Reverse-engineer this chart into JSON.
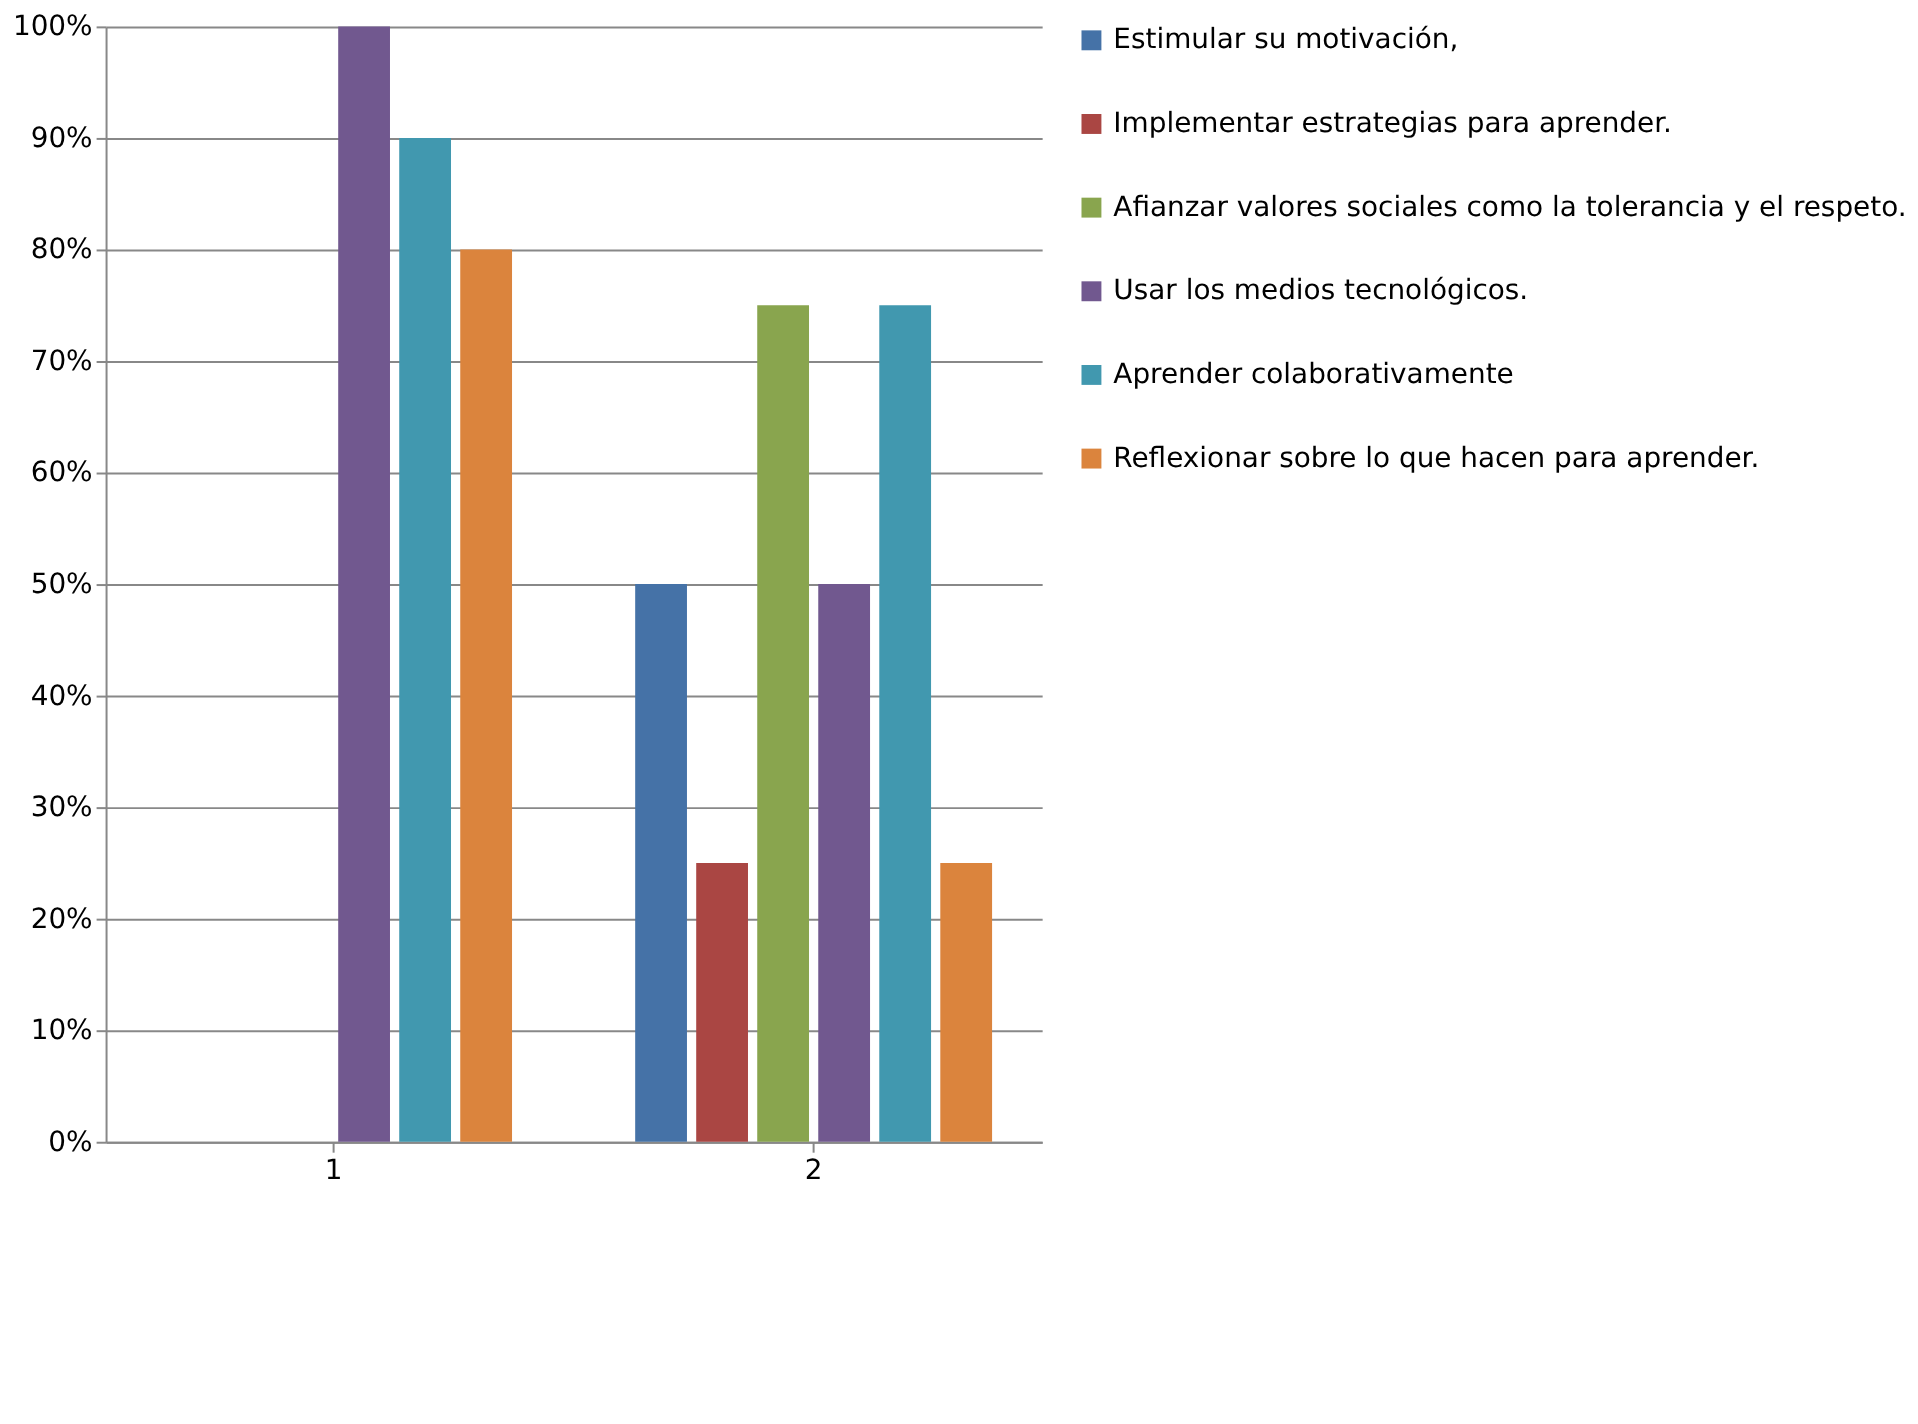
{
  "chart_data": {
    "type": "bar",
    "categories": [
      "1",
      "2"
    ],
    "series": [
      {
        "name": "Estimular su motivación,",
        "color": "#4572a7",
        "values": [
          0,
          50
        ]
      },
      {
        "name": "Implementar estrategias para aprender.",
        "color": "#aa4643",
        "values": [
          0,
          25
        ]
      },
      {
        "name": "Afianzar valores sociales como la tolerancia y el respeto.",
        "color": "#89a54e",
        "values": [
          0,
          75
        ]
      },
      {
        "name": "Usar los medios tecnológicos.",
        "color": "#71588f",
        "values": [
          100,
          50
        ]
      },
      {
        "name": "Aprender colaborativamente",
        "color": "#4198af",
        "values": [
          90,
          75
        ]
      },
      {
        "name": "Reflexionar sobre lo que hacen para aprender.",
        "color": "#db843d",
        "values": [
          80,
          25
        ]
      }
    ],
    "ylim": [
      0,
      100
    ],
    "yticks": [
      {
        "value": 0,
        "label": "0%"
      },
      {
        "value": 10,
        "label": "10%"
      },
      {
        "value": 20,
        "label": "20%"
      },
      {
        "value": 30,
        "label": "30%"
      },
      {
        "value": 40,
        "label": "40%"
      },
      {
        "value": 50,
        "label": "50%"
      },
      {
        "value": 60,
        "label": "60%"
      },
      {
        "value": 70,
        "label": "70%"
      },
      {
        "value": 80,
        "label": "80%"
      },
      {
        "value": 90,
        "label": "90%"
      },
      {
        "value": 100,
        "label": "100%"
      }
    ],
    "grid": "y",
    "legend": "right"
  }
}
